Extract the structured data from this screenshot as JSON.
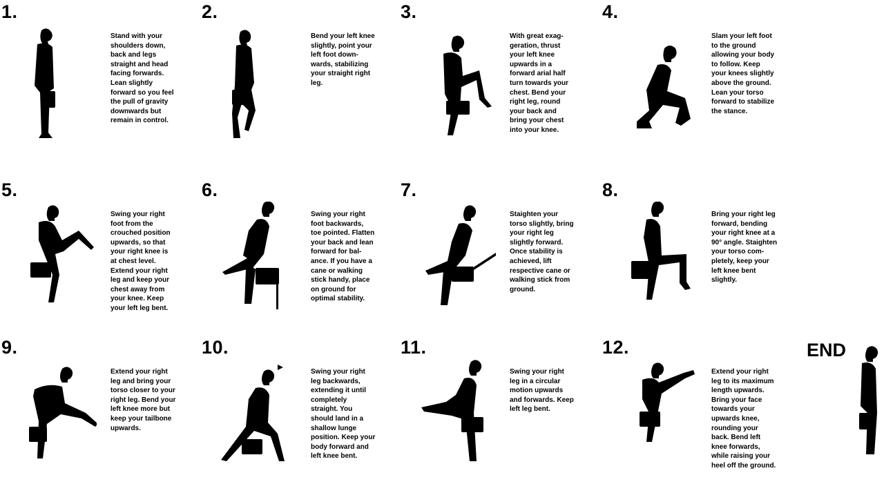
{
  "steps": [
    {
      "number": "1.",
      "text": "Stand with your\nshoulders down,\nback and legs\nstraight and head\nfacing forwards.\nLean slightly\nforward so you feel\nthe pull of gravity\ndownwards but\nremain in control."
    },
    {
      "number": "2.",
      "text": "Bend your left knee\nslightly, point your\nleft foot down-\nwards, stabilizing\nyour straight right\nleg."
    },
    {
      "number": "3.",
      "text": "With great exag-\ngeration, thrust\nyour left knee\nupwards in a\nforward arial half\nturn towards your\nchest. Bend your\nright leg, round\nyour back and\nbring your chest\ninto your knee."
    },
    {
      "number": "4.",
      "text": "Slam your left foot\nto the ground\nallowing your body\nto follow. Keep\nyour knees slightly\nabove the ground.\nLean your torso\nforward to stabilize\nthe stance."
    },
    {
      "number": "5.",
      "text": "Swing your right\nfoot from the\ncrouched position\nupwards, so that\nyour right knee is\nat chest level.\nExtend your right\nleg and keep your\nchest away from\nyour knee. Keep\nyour left leg bent."
    },
    {
      "number": "6.",
      "text": "Swing your right\nfoot backwards,\ntoe pointed. Flatten\nyour back and lean\nforward for bal-\nance. If you have a\ncane or walking\nstick handy, place\non ground for\noptimal stability."
    },
    {
      "number": "7.",
      "text": "Staighten your\ntorso slightly, bring\nyour right leg\nslightly forward.\nOnce stability is\nachieved, lift\nrespective cane or\nwalking stick from\nground."
    },
    {
      "number": "8.",
      "text": "Bring your right leg\nforward, bending\nyour right knee at a\n90° angle. Staighten\nyour torso com-\npletely, keep your\nleft knee bent\nslightly."
    },
    {
      "number": "9.",
      "text": "Extend your right\nleg and bring your\ntorso closer to your\nright leg. Bend your\nleft knee more but\nkeep your tailbone\nupwards."
    },
    {
      "number": "10.",
      "text": "Swing your right\nleg backwards,\nextending it until\ncompletely\nstraight. You\nshould land in a\nshallow lunge\nposition. Keep your\nbody forward and\nleft knee bent."
    },
    {
      "number": "11.",
      "text": "Swing your right\nleg in a circular\nmotion upwards\nand forwards. Keep\nleft leg bent."
    },
    {
      "number": "12.",
      "text": "Extend your right\nleg to its maximum\nlength upwards.\nBring your face\ntowards your\nupwards knee,\nrounding your\nback. Bend left\nknee forwards,\nwhile raising your\nheel off the ground."
    }
  ],
  "end_label": "END",
  "colors": {
    "ink": "#000000",
    "background": "#ffffff"
  }
}
